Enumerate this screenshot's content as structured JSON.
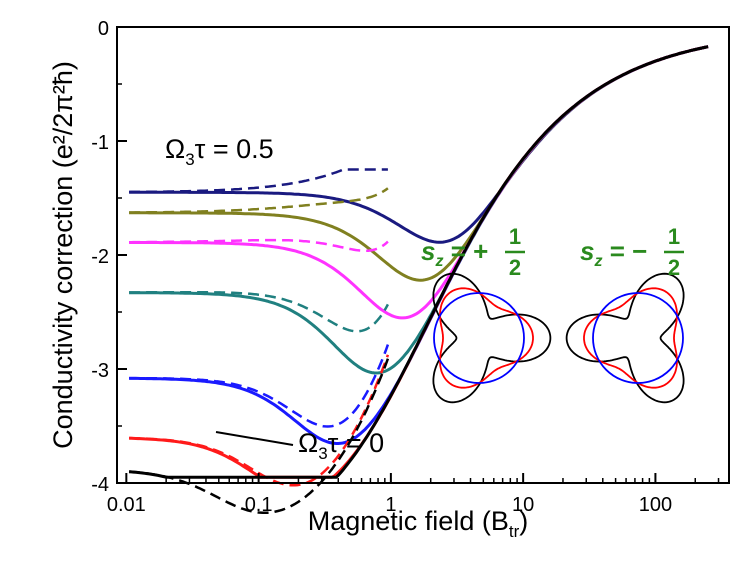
{
  "chart_data": {
    "type": "line",
    "xscale": "log",
    "xlim": [
      0.0085,
      360
    ],
    "ylim": [
      -4,
      0
    ],
    "xlabel_main": "Magnetic field (B",
    "xlabel_sub": "tr",
    "xlabel_close": ")",
    "ylabel": "Conductivity correction (e²/2π²ħ)",
    "x_ticks": [
      {
        "value": 0.01,
        "label": "0.01"
      },
      {
        "value": 0.1,
        "label": "0.1"
      },
      {
        "value": 1,
        "label": "1"
      },
      {
        "value": 10,
        "label": "10"
      },
      {
        "value": 100,
        "label": "100"
      }
    ],
    "y_ticks": [
      {
        "value": 0,
        "label": "0"
      },
      {
        "value": -1,
        "label": "-1"
      },
      {
        "value": -2,
        "label": "-2"
      },
      {
        "value": -3,
        "label": "-3"
      },
      {
        "value": -4,
        "label": "-4"
      }
    ],
    "series": [
      {
        "name": "Ω3τ = 0.5",
        "color": "#1a1a80",
        "sat": -1.45,
        "b0": 2.5
      },
      {
        "name": "olive",
        "color": "#808020",
        "sat": -1.63,
        "b0": 1.55
      },
      {
        "name": "magenta",
        "color": "#ff33ff",
        "sat": -1.89,
        "b0": 1.05
      },
      {
        "name": "teal",
        "color": "#208080",
        "sat": -2.33,
        "b0": 0.6
      },
      {
        "name": "blue",
        "color": "#1a1aff",
        "sat": -3.08,
        "b0": 0.28
      },
      {
        "name": "red",
        "color": "#ff1a1a",
        "sat": -3.6,
        "b0": 0.12
      },
      {
        "name": "Ω3τ = 0",
        "color": "#000000",
        "sat": -3.88,
        "b0": 0.06
      }
    ],
    "annotations": [
      {
        "id": "top",
        "label_main": "Ω",
        "label_sub": "3",
        "label_rest": "τ = 0.5"
      },
      {
        "id": "bottom",
        "label_main": "Ω",
        "label_sub": "3",
        "label_rest": "τ = 0"
      }
    ],
    "insets": [
      {
        "id": "plus",
        "label_s": "s",
        "label_sub": "z",
        "label_eq": " = +",
        "num": "1",
        "den": "2",
        "color": "#2a8a1e",
        "rotation": 0
      },
      {
        "id": "minus",
        "label_s": "s",
        "label_sub": "z",
        "label_eq": " = −",
        "num": "1",
        "den": "2",
        "color": "#2a8a1e",
        "rotation": 180
      }
    ],
    "inset_curve_colors": {
      "outer": "#000000",
      "middle": "#ff0000",
      "circle": "#0000ff"
    }
  }
}
